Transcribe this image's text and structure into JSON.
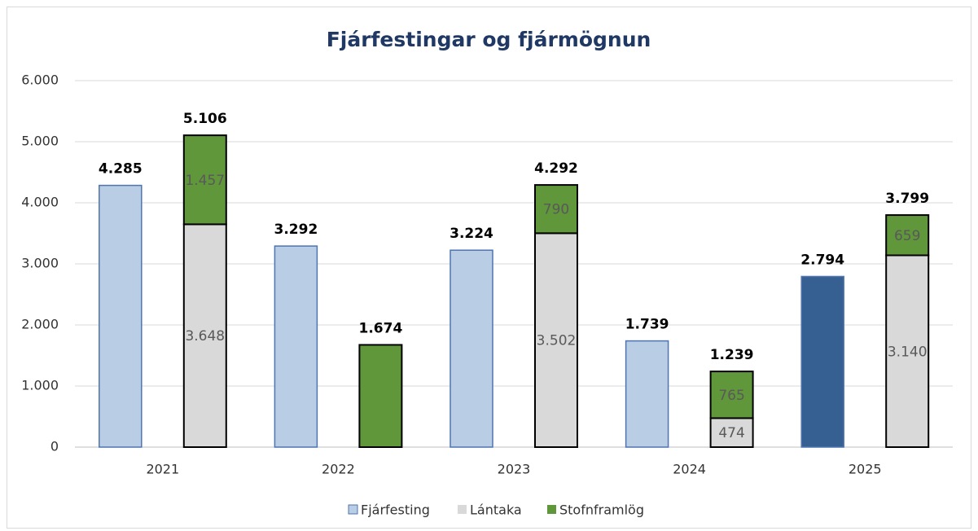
{
  "chart_data": {
    "type": "bar",
    "title": "Fjárfestingar og fjármögnun",
    "categories": [
      "2021",
      "2022",
      "2023",
      "2024",
      "2025"
    ],
    "series": [
      {
        "name": "Fjárfesting",
        "color": "#b9cde5",
        "edgecolor": "#4f74b0",
        "colors": [
          "#b9cde5",
          "#b9cde5",
          "#b9cde5",
          "#b9cde5",
          "#376092"
        ],
        "values": [
          4285,
          3292,
          3224,
          1739,
          2794
        ],
        "value_labels": [
          "4.285",
          "3.292",
          "3.224",
          "1.739",
          "2.794"
        ]
      },
      {
        "name": "Lántaka",
        "color": "#d9d9d9",
        "edgecolor": "#000000",
        "stack": "fjarmognun",
        "values": [
          3648,
          null,
          3502,
          474,
          3140
        ],
        "value_labels": [
          "3.648",
          null,
          "3.502",
          "474",
          "3.140"
        ]
      },
      {
        "name": "Stofnframlög",
        "color": "#5f973a",
        "edgecolor": "#000000",
        "stack": "fjarmognun",
        "values": [
          1457,
          1674,
          790,
          765,
          659
        ],
        "value_labels": [
          "1.457",
          null,
          "790",
          "765",
          "659"
        ]
      }
    ],
    "stack_totals": [
      5106,
      1674,
      4292,
      1239,
      3799
    ],
    "stack_total_labels": [
      "5.106",
      "1.674",
      "4.292",
      "1.239",
      "3.799"
    ],
    "ylim": [
      0,
      6000
    ],
    "yticks": [
      0,
      {
        "value": 1000,
        "label": "1.000"
      },
      {
        "value": 2000,
        "label": "2.000"
      },
      {
        "value": 3000,
        "label": "3.000"
      },
      {
        "value": 4000,
        "label": "4.000"
      },
      {
        "value": 5000,
        "label": "5.000"
      },
      {
        "value": 6000,
        "label": "6.000"
      }
    ],
    "grid": true,
    "legend": "bottom"
  }
}
